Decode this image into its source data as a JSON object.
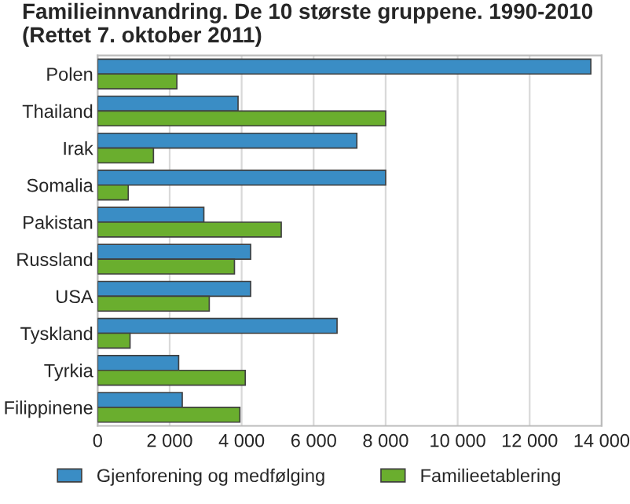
{
  "chart_data": {
    "type": "bar",
    "orientation": "horizontal",
    "title": "Familieinnvandring. De 10 største gruppene. 1990-2010\n(Rettet 7. oktober 2011)",
    "categories": [
      "Polen",
      "Thailand",
      "Irak",
      "Somalia",
      "Pakistan",
      "Russland",
      "USA",
      "Tyskland",
      "Tyrkia",
      "Filippinene"
    ],
    "series": [
      {
        "name": "Gjenforening og medfølging",
        "color": "#3a8dc5",
        "values": [
          13700,
          3900,
          7200,
          8000,
          2950,
          4250,
          4250,
          6650,
          2250,
          2350
        ]
      },
      {
        "name": "Familieetablering",
        "color": "#6aae2e",
        "values": [
          2200,
          8000,
          1550,
          850,
          5100,
          3800,
          3100,
          900,
          4100,
          3950
        ]
      }
    ],
    "xlim": [
      0,
      14000
    ],
    "xticks": [
      0,
      {
        "value": 2000,
        "label": "2 000"
      },
      {
        "value": 4000,
        "label": "4 000"
      },
      {
        "value": 6000,
        "label": "6 000"
      },
      {
        "value": 8000,
        "label": "8 000"
      },
      {
        "value": 10000,
        "label": "10 000"
      },
      {
        "value": 12000,
        "label": "12 000"
      },
      {
        "value": 14000,
        "label": "14 000"
      }
    ],
    "grid": "x",
    "legend": "bottom"
  }
}
